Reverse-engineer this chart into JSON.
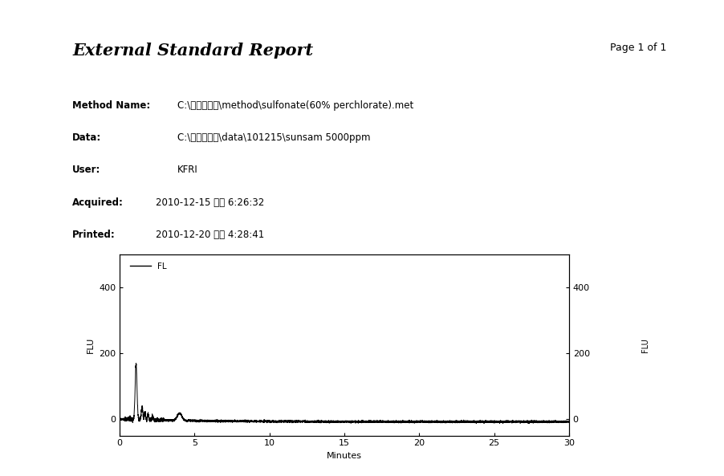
{
  "title": "External Standard Report",
  "page": "Page 1 of 1",
  "meta_labels": [
    "Method Name:",
    "Data:",
    "User:",
    "Acquired:",
    "Printed:"
  ],
  "meta_values": [
    "C:\\계면활성제\\method\\sulfonate(60% perchlorate).met",
    "C:\\계면활성제\\data\\101215\\sunsam 5000ppm",
    "KFRI",
    "2010-12-15 오후 6:26:32",
    "2010-12-20 오후 4:28:41"
  ],
  "ylabel_left": "FLU",
  "ylabel_right": "FLU",
  "xlabel": "Minutes",
  "legend_label": "FL",
  "xlim": [
    0,
    30
  ],
  "ylim": [
    -50,
    500
  ],
  "yticks": [
    0,
    200,
    400
  ],
  "xticks": [
    0,
    5,
    10,
    15,
    20,
    25,
    30
  ],
  "background_color": "#ffffff",
  "line_color": "#000000"
}
